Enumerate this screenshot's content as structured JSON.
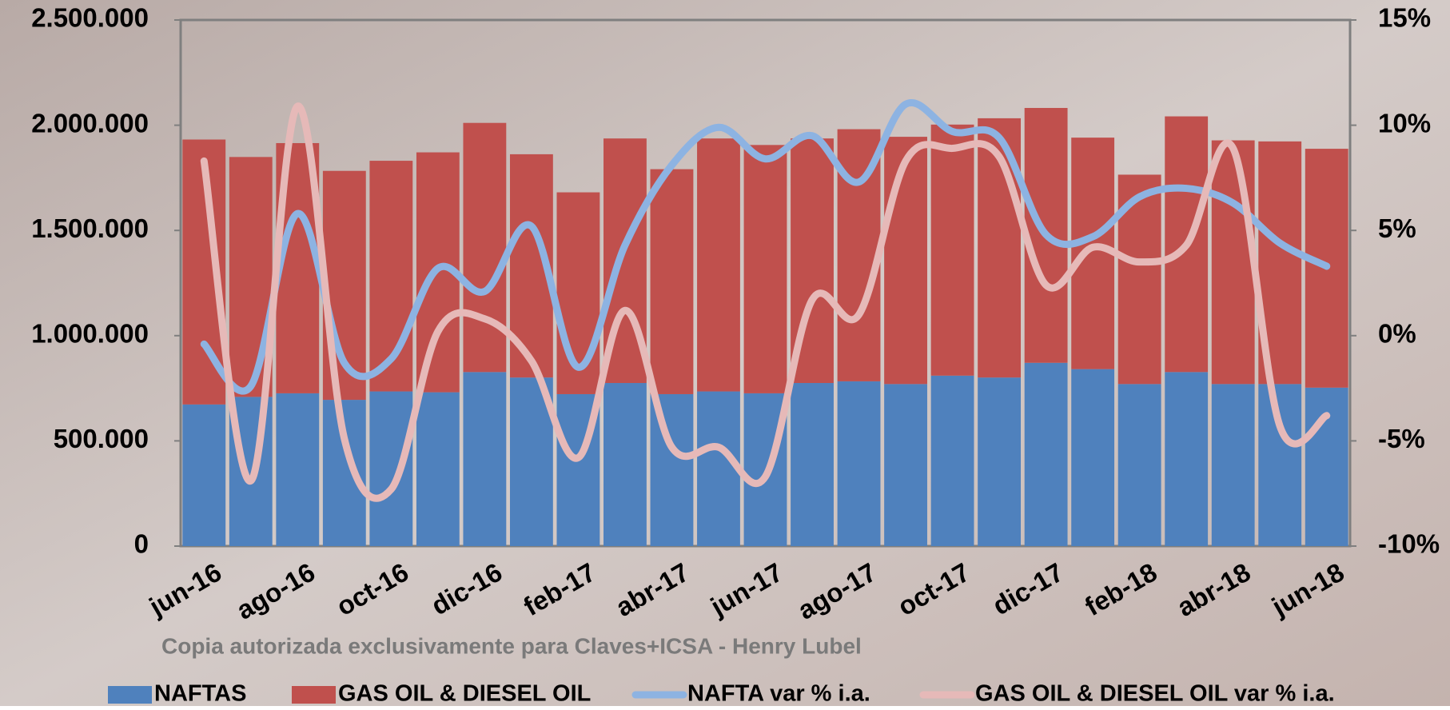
{
  "chart_data": {
    "type": "bar",
    "categories": [
      "jun-16",
      null,
      "ago-16",
      null,
      "oct-16",
      null,
      "dic-16",
      null,
      "feb-17",
      null,
      "abr-17",
      null,
      "jun-17",
      null,
      "ago-17",
      null,
      "oct-17",
      null,
      "dic-17",
      null,
      "feb-18",
      null,
      "abr-18",
      null,
      "jun-18"
    ],
    "series": [
      {
        "name": "NAFTAS",
        "type": "bar",
        "color": "#4f81bd",
        "values": [
          673000,
          709000,
          726000,
          695000,
          735000,
          731000,
          827000,
          801000,
          722000,
          775000,
          722000,
          735000,
          726000,
          775000,
          783000,
          770000,
          810000,
          801000,
          871000,
          841000,
          770000,
          827000,
          770000,
          770000,
          753000
        ]
      },
      {
        "name": "GAS OIL & DIESEL OIL",
        "type": "bar",
        "color": "#c0504d",
        "values": [
          1259000,
          1140000,
          1189000,
          1088000,
          1096000,
          1140000,
          1184000,
          1061000,
          959000,
          1162000,
          1069000,
          1202000,
          1180000,
          1162000,
          1198000,
          1175000,
          1193000,
          1232000,
          1211000,
          1100000,
          995000,
          1215000,
          1158000,
          1153000,
          1135000
        ]
      },
      {
        "name": "NAFTA var % i.a.",
        "type": "line",
        "axis": "y2",
        "color": "#8db3e2",
        "values": [
          -0.4,
          -2.4,
          5.8,
          -1.3,
          -1.1,
          3.2,
          2.1,
          5.2,
          -1.5,
          4.3,
          8.1,
          9.9,
          8.4,
          9.5,
          7.3,
          11.0,
          9.7,
          9.4,
          4.8,
          4.7,
          6.6,
          7.0,
          6.3,
          4.4,
          3.3
        ]
      },
      {
        "name": "GAS OIL & DIESEL OIL var % i.a.",
        "type": "line",
        "axis": "y2",
        "color": "#e6b9b8",
        "values": [
          8.3,
          -6.9,
          10.9,
          -4.9,
          -7.3,
          0.2,
          0.8,
          -1.2,
          -5.8,
          1.2,
          -5.3,
          -5.3,
          -6.7,
          1.7,
          1.0,
          8.3,
          8.9,
          8.5,
          2.4,
          4.2,
          3.5,
          4.3,
          8.9,
          -4.3,
          -3.8
        ]
      }
    ],
    "ylim": [
      0,
      2500000
    ],
    "yticks": [
      0,
      {
        "value": 500000,
        "label": "500.000"
      },
      {
        "value": 1000000,
        "label": "1.000.000"
      },
      {
        "value": 1500000,
        "label": "1.500.000"
      },
      {
        "value": 2000000,
        "label": "2.000.000"
      },
      {
        "value": 2500000,
        "label": "2.500.000"
      }
    ],
    "y2lim": [
      -10,
      15
    ],
    "y2ticks": [
      {
        "value": -10,
        "label": "-10%"
      },
      {
        "value": -5,
        "label": "-5%"
      },
      {
        "value": 0,
        "label": "0%"
      },
      {
        "value": 5,
        "label": "5%"
      },
      {
        "value": 10,
        "label": "10%"
      },
      {
        "value": 15,
        "label": "15%"
      }
    ],
    "annotation": "Copia autorizada exclusivamente para Claves+ICSA - Henry Lubel",
    "legend": "bottom"
  }
}
